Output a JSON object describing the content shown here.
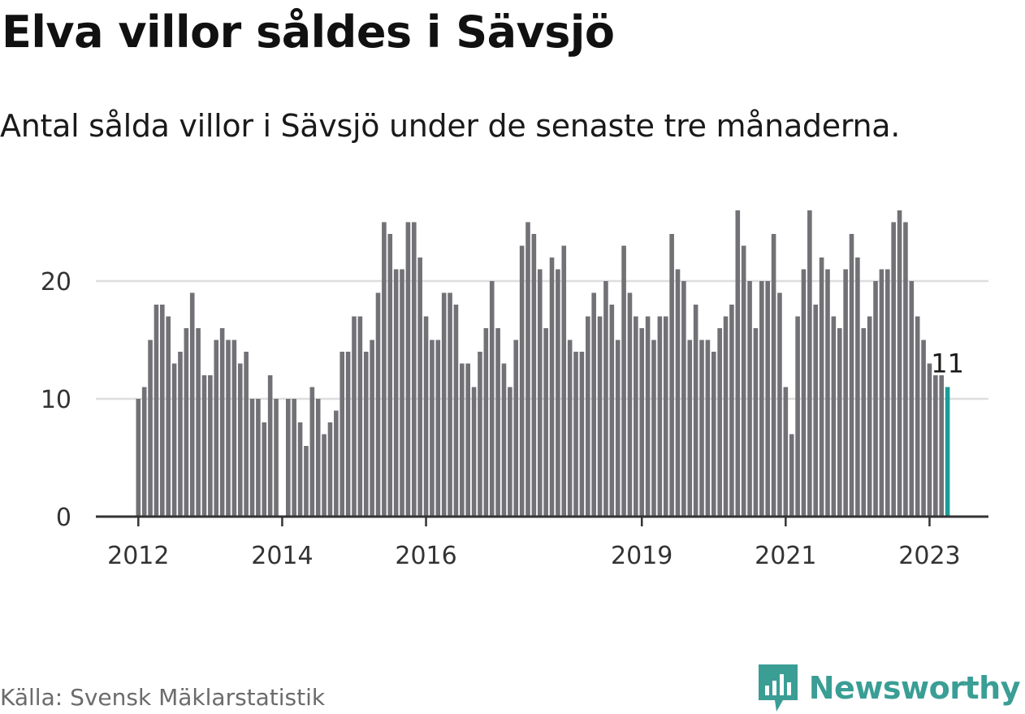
{
  "header": {
    "title": "Elva villor såldes i Sävsjö",
    "subtitle": "Antal sålda villor i Sävsjö under de senaste tre månaderna."
  },
  "footer": {
    "source": "Källa: Svensk Mäklarstatistik",
    "brand": "Newsworthy",
    "brand_icon": "newsworthy-logo-icon"
  },
  "colors": {
    "bar": "#727176",
    "highlight": "#1a9e96",
    "grid": "#dedede",
    "axis": "#333333",
    "brand": "#3a9e95"
  },
  "chart_data": {
    "type": "bar",
    "start": "2012-01",
    "values": [
      10,
      11,
      15,
      18,
      18,
      17,
      13,
      14,
      16,
      19,
      16,
      12,
      12,
      15,
      16,
      15,
      15,
      13,
      14,
      10,
      10,
      8,
      12,
      10,
      0,
      10,
      10,
      8,
      6,
      11,
      10,
      7,
      8,
      9,
      14,
      14,
      17,
      17,
      14,
      15,
      19,
      25,
      24,
      21,
      21,
      25,
      25,
      22,
      17,
      15,
      15,
      19,
      19,
      18,
      13,
      13,
      11,
      14,
      16,
      20,
      16,
      13,
      11,
      15,
      23,
      25,
      24,
      21,
      16,
      22,
      21,
      23,
      15,
      14,
      14,
      17,
      19,
      17,
      20,
      18,
      15,
      23,
      19,
      17,
      16,
      17,
      15,
      17,
      17,
      24,
      21,
      20,
      15,
      18,
      15,
      15,
      14,
      16,
      17,
      18,
      26,
      23,
      20,
      16,
      20,
      20,
      24,
      19,
      11,
      7,
      17,
      21,
      26,
      18,
      22,
      21,
      17,
      16,
      21,
      24,
      22,
      16,
      17,
      20,
      21,
      21,
      25,
      26,
      25,
      20,
      17,
      15,
      13,
      12,
      12,
      11
    ],
    "highlight_index": 135,
    "highlight_label": "11",
    "ylim": [
      0,
      28
    ],
    "yticks": [
      0,
      10,
      20
    ],
    "xticks": [
      {
        "label": "2012",
        "index": 0
      },
      {
        "label": "2014",
        "index": 24
      },
      {
        "label": "2016",
        "index": 48
      },
      {
        "label": "2019",
        "index": 84
      },
      {
        "label": "2021",
        "index": 108
      },
      {
        "label": "2023",
        "index": 132
      }
    ],
    "grid": true,
    "xlabel": "",
    "ylabel": ""
  }
}
